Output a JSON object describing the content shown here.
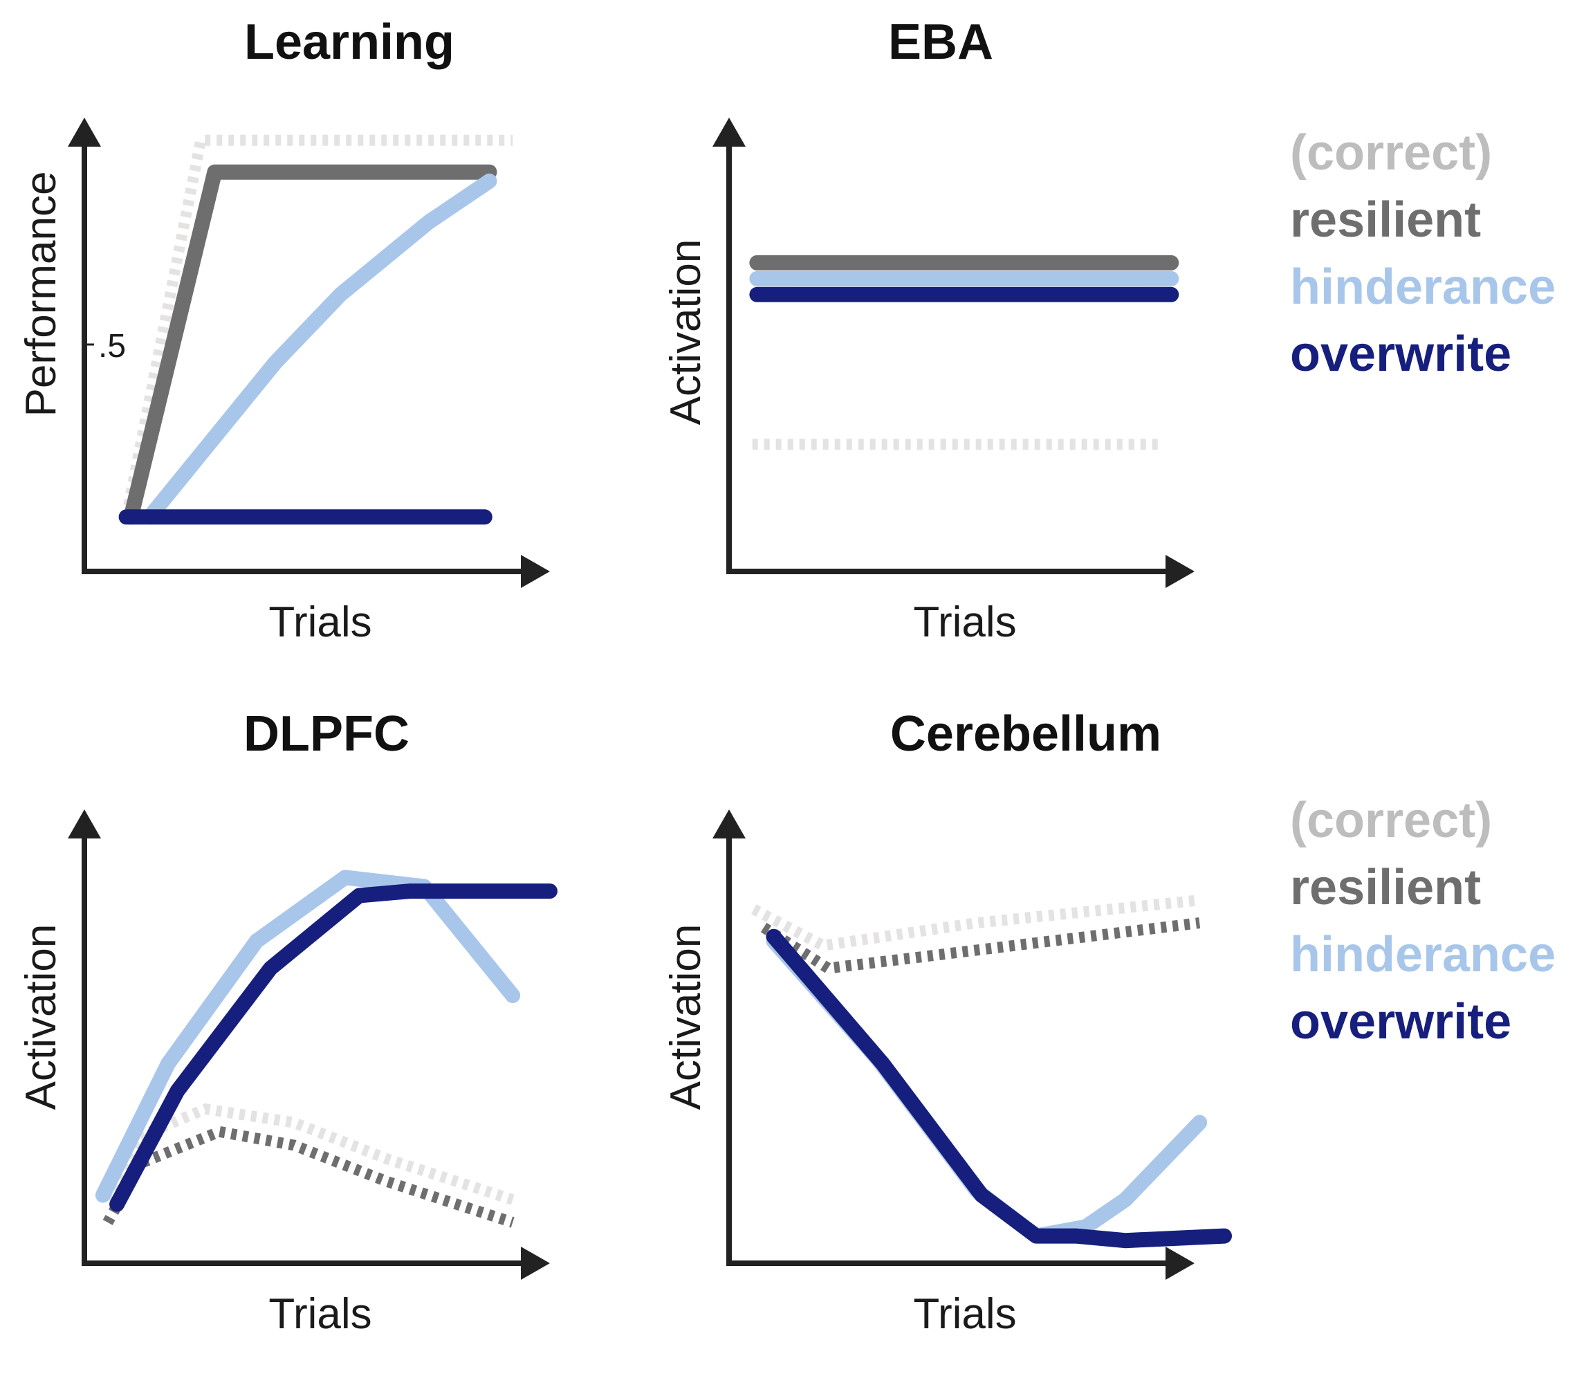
{
  "colors": {
    "correct": "#e5e2e2",
    "resilient": "#6e6e6e",
    "hinderance": "#a8c6ea",
    "overwrite": "#161f7d",
    "axis": "#222222"
  },
  "legend_groups": [
    {
      "items": [
        {
          "label": "(correct)",
          "key": "correct",
          "text_color": "#bdbdbd"
        },
        {
          "label": "resilient",
          "key": "resilient",
          "text_color": "#6e6e6e"
        },
        {
          "label": "hinderance",
          "key": "hinderance",
          "text_color": "#a8c6ea"
        },
        {
          "label": "overwrite",
          "key": "overwrite",
          "text_color": "#161f7d"
        }
      ]
    },
    {
      "items": [
        {
          "label": "(correct)",
          "key": "correct",
          "text_color": "#bdbdbd"
        },
        {
          "label": "resilient",
          "key": "resilient",
          "text_color": "#6e6e6e"
        },
        {
          "label": "hinderance",
          "key": "hinderance",
          "text_color": "#a8c6ea"
        },
        {
          "label": "overwrite",
          "key": "overwrite",
          "text_color": "#161f7d"
        }
      ]
    }
  ],
  "chart_data": [
    {
      "type": "line",
      "title": "Learning",
      "xlabel": "Trials",
      "ylabel": "Performance",
      "xlim": [
        0,
        1
      ],
      "ylim": [
        0,
        1
      ],
      "yticks": [
        {
          "value": 0.5,
          "label": ".5"
        }
      ],
      "series": [
        {
          "key": "correct",
          "dashed": true,
          "x": [
            0.09,
            0.25,
            0.92
          ],
          "y": [
            0.12,
            0.95,
            0.95
          ]
        },
        {
          "key": "resilient",
          "dashed": false,
          "x": [
            0.1,
            0.28,
            0.87
          ],
          "y": [
            0.12,
            0.88,
            0.88
          ]
        },
        {
          "key": "hinderance",
          "dashed": false,
          "x": [
            0.14,
            0.41,
            0.55,
            0.74,
            0.87
          ],
          "y": [
            0.12,
            0.46,
            0.61,
            0.77,
            0.86
          ]
        },
        {
          "key": "overwrite",
          "dashed": false,
          "x": [
            0.09,
            0.86
          ],
          "y": [
            0.12,
            0.12
          ]
        }
      ]
    },
    {
      "type": "line",
      "title": "EBA",
      "xlabel": "Trials",
      "ylabel": "Activation",
      "xlim": [
        0,
        1
      ],
      "ylim": [
        0,
        1
      ],
      "series": [
        {
          "key": "resilient",
          "dashed": false,
          "x": [
            0.06,
            0.95
          ],
          "y": [
            0.68,
            0.68
          ]
        },
        {
          "key": "hinderance",
          "dashed": false,
          "x": [
            0.06,
            0.95
          ],
          "y": [
            0.645,
            0.645
          ]
        },
        {
          "key": "overwrite",
          "dashed": false,
          "x": [
            0.06,
            0.95
          ],
          "y": [
            0.61,
            0.61
          ]
        },
        {
          "key": "correct",
          "dashed": true,
          "x": [
            0.05,
            0.93
          ],
          "y": [
            0.28,
            0.28
          ]
        }
      ]
    },
    {
      "type": "line",
      "title": "DLPFC",
      "xlabel": "Trials",
      "ylabel": "Activation",
      "xlim": [
        0,
        1
      ],
      "ylim": [
        0,
        1
      ],
      "series": [
        {
          "key": "correct",
          "dashed": true,
          "x": [
            0.05,
            0.12,
            0.26,
            0.45,
            0.65,
            0.92
          ],
          "y": [
            0.14,
            0.28,
            0.34,
            0.31,
            0.23,
            0.14
          ]
        },
        {
          "key": "resilient",
          "dashed": true,
          "x": [
            0.05,
            0.12,
            0.29,
            0.45,
            0.65,
            0.92
          ],
          "y": [
            0.09,
            0.22,
            0.29,
            0.26,
            0.18,
            0.09
          ]
        },
        {
          "key": "hinderance",
          "dashed": false,
          "x": [
            0.04,
            0.18,
            0.37,
            0.56,
            0.73,
            0.92
          ],
          "y": [
            0.15,
            0.44,
            0.71,
            0.85,
            0.83,
            0.59
          ]
        },
        {
          "key": "overwrite",
          "dashed": false,
          "x": [
            0.07,
            0.2,
            0.4,
            0.59,
            0.7,
            1.0
          ],
          "y": [
            0.13,
            0.38,
            0.65,
            0.81,
            0.82,
            0.82
          ]
        }
      ]
    },
    {
      "type": "line",
      "title": "Cerebellum",
      "xlabel": "Trials",
      "ylabel": "Activation",
      "xlim": [
        0,
        1
      ],
      "ylim": [
        0,
        1
      ],
      "series": [
        {
          "key": "correct",
          "dashed": true,
          "x": [
            0.05,
            0.19,
            0.5,
            0.95
          ],
          "y": [
            0.78,
            0.7,
            0.75,
            0.8
          ]
        },
        {
          "key": "resilient",
          "dashed": true,
          "x": [
            0.07,
            0.2,
            0.5,
            0.95
          ],
          "y": [
            0.74,
            0.65,
            0.69,
            0.75
          ]
        },
        {
          "key": "hinderance",
          "dashed": false,
          "x": [
            0.09,
            0.3,
            0.5,
            0.62,
            0.72,
            0.8,
            0.95
          ],
          "y": [
            0.71,
            0.45,
            0.16,
            0.06,
            0.08,
            0.14,
            0.31
          ]
        },
        {
          "key": "overwrite",
          "dashed": false,
          "x": [
            0.09,
            0.31,
            0.51,
            0.62,
            0.7,
            0.8,
            1.0
          ],
          "y": [
            0.72,
            0.44,
            0.15,
            0.06,
            0.06,
            0.05,
            0.06
          ]
        }
      ]
    }
  ]
}
